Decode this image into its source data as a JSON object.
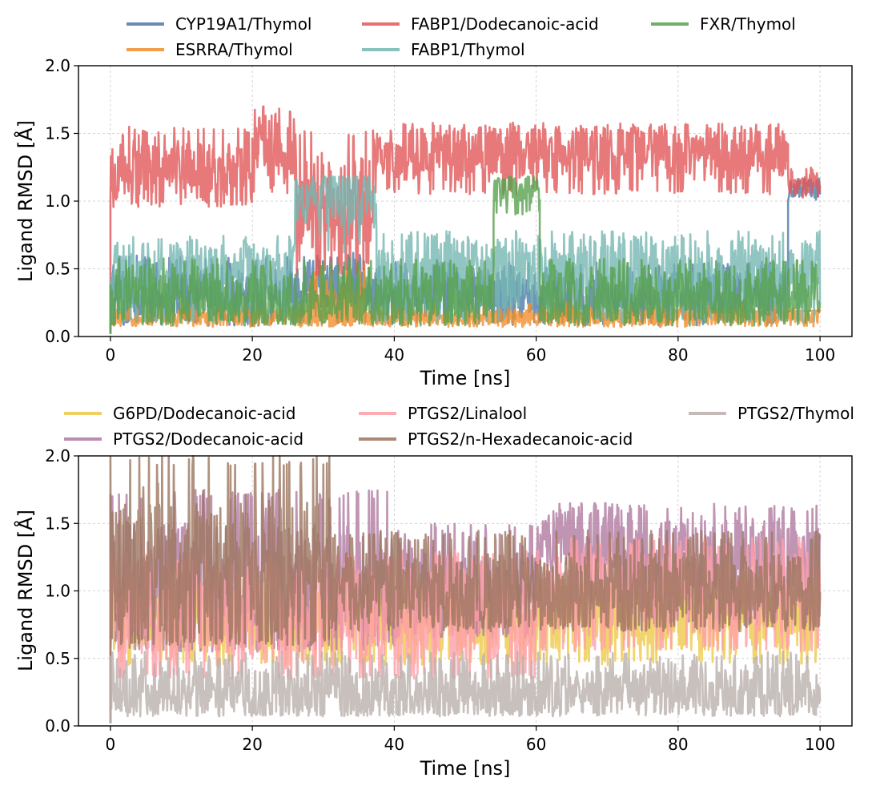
{
  "chart_data": [
    {
      "type": "line",
      "title": "",
      "xlabel": "Time [ns]",
      "ylabel": "Ligand RMSD [Å]",
      "xlim": [
        -4.5,
        104.5
      ],
      "ylim": [
        0.0,
        2.0
      ],
      "xticks": [
        0,
        20,
        40,
        60,
        80,
        100
      ],
      "xtick_labels": [
        "0",
        "20",
        "40",
        "60",
        "80",
        "100"
      ],
      "yticks": [
        0.0,
        0.5,
        1.0,
        1.5,
        2.0
      ],
      "ytick_labels": [
        "0.0",
        "0.5",
        "1.0",
        "1.5",
        "2.0"
      ],
      "grid": true,
      "legend_position": "top-outside",
      "legend_columns": 3,
      "series": [
        {
          "name": "CYP19A1/Thymol",
          "color": "#4e79a7",
          "segments": [
            {
              "x": [
                0,
                26
              ],
              "mean": 0.3,
              "low": 0.08,
              "high": 0.6
            },
            {
              "x": [
                26,
                37
              ],
              "mean": 0.4,
              "low": 0.1,
              "high": 0.62
            },
            {
              "x": [
                37,
                95.5
              ],
              "mean": 0.3,
              "low": 0.08,
              "high": 0.55
            },
            {
              "x": [
                95.5,
                100
              ],
              "mean": 1.1,
              "low": 1.0,
              "high": 1.18
            }
          ]
        },
        {
          "name": "ESRRA/Thymol",
          "color": "#f28e2b",
          "segments": [
            {
              "x": [
                0,
                100
              ],
              "mean": 0.14,
              "low": 0.07,
              "high": 0.25
            },
            {
              "x": [
                28,
                36
              ],
              "mean": 0.25,
              "low": 0.08,
              "high": 0.55
            }
          ]
        },
        {
          "name": "FABP1/Dodecanoic-acid",
          "color": "#e15759",
          "segments": [
            {
              "x": [
                0,
                20
              ],
              "mean": 1.2,
              "low": 0.95,
              "high": 1.55
            },
            {
              "x": [
                20,
                26
              ],
              "mean": 1.4,
              "low": 1.05,
              "high": 1.7
            },
            {
              "x": [
                26,
                37
              ],
              "mean": 0.95,
              "low": 0.45,
              "high": 1.55
            },
            {
              "x": [
                37,
                95.5
              ],
              "mean": 1.35,
              "low": 1.05,
              "high": 1.58
            },
            {
              "x": [
                95.5,
                100
              ],
              "mean": 1.12,
              "low": 1.02,
              "high": 1.25
            }
          ]
        },
        {
          "name": "FABP1/Thymol",
          "color": "#76b7b2",
          "segments": [
            {
              "x": [
                0,
                26
              ],
              "mean": 0.45,
              "low": 0.1,
              "high": 0.75
            },
            {
              "x": [
                26,
                37.5
              ],
              "mean": 1.05,
              "low": 0.6,
              "high": 1.18
            },
            {
              "x": [
                37.5,
                100
              ],
              "mean": 0.45,
              "low": 0.1,
              "high": 0.78
            }
          ]
        },
        {
          "name": "FXR/Thymol",
          "color": "#59a14f",
          "segments": [
            {
              "x": [
                0,
                54
              ],
              "mean": 0.28,
              "low": 0.08,
              "high": 0.58
            },
            {
              "x": [
                54,
                60.5
              ],
              "mean": 1.1,
              "low": 0.9,
              "high": 1.18
            },
            {
              "x": [
                60.5,
                100
              ],
              "mean": 0.28,
              "low": 0.08,
              "high": 0.58
            }
          ]
        }
      ]
    },
    {
      "type": "line",
      "title": "",
      "xlabel": "Time [ns]",
      "ylabel": "Ligand RMSD [Å]",
      "xlim": [
        -4.5,
        104.5
      ],
      "ylim": [
        0.0,
        2.0
      ],
      "xticks": [
        0,
        20,
        40,
        60,
        80,
        100
      ],
      "xtick_labels": [
        "0",
        "20",
        "40",
        "60",
        "80",
        "100"
      ],
      "yticks": [
        0.0,
        0.5,
        1.0,
        1.5,
        2.0
      ],
      "ytick_labels": [
        "0.0",
        "0.5",
        "1.0",
        "1.5",
        "2.0"
      ],
      "grid": true,
      "legend_position": "top-outside",
      "legend_columns": 3,
      "series": [
        {
          "name": "G6PD/Dodecanoic-acid",
          "color": "#edc948",
          "segments": [
            {
              "x": [
                0,
                100
              ],
              "mean": 0.8,
              "low": 0.45,
              "high": 1.1
            }
          ]
        },
        {
          "name": "PTGS2/Dodecanoic-acid",
          "color": "#b07aa1",
          "segments": [
            {
              "x": [
                0,
                40
              ],
              "mean": 1.05,
              "low": 0.55,
              "high": 1.75
            },
            {
              "x": [
                40,
                60
              ],
              "mean": 1.05,
              "low": 0.65,
              "high": 1.5
            },
            {
              "x": [
                60,
                72
              ],
              "mean": 1.4,
              "low": 0.9,
              "high": 1.65
            },
            {
              "x": [
                72,
                100
              ],
              "mean": 1.2,
              "low": 0.75,
              "high": 1.65
            }
          ]
        },
        {
          "name": "PTGS2/Linalool",
          "color": "#ff9da7",
          "segments": [
            {
              "x": [
                0,
                60
              ],
              "mean": 0.85,
              "low": 0.35,
              "high": 1.3
            },
            {
              "x": [
                60,
                100
              ],
              "mean": 1.0,
              "low": 0.55,
              "high": 1.4
            }
          ]
        },
        {
          "name": "PTGS2/n-Hexadecanoic-acid",
          "color": "#9c755f",
          "segments": [
            {
              "x": [
                0,
                31
              ],
              "mean": 1.15,
              "low": 0.6,
              "high": 2.0
            },
            {
              "x": [
                31,
                100
              ],
              "mean": 1.0,
              "low": 0.7,
              "high": 1.45
            }
          ]
        },
        {
          "name": "PTGS2/Thymol",
          "color": "#bab0ac",
          "segments": [
            {
              "x": [
                0,
                100
              ],
              "mean": 0.25,
              "low": 0.07,
              "high": 0.55
            }
          ]
        }
      ]
    }
  ]
}
